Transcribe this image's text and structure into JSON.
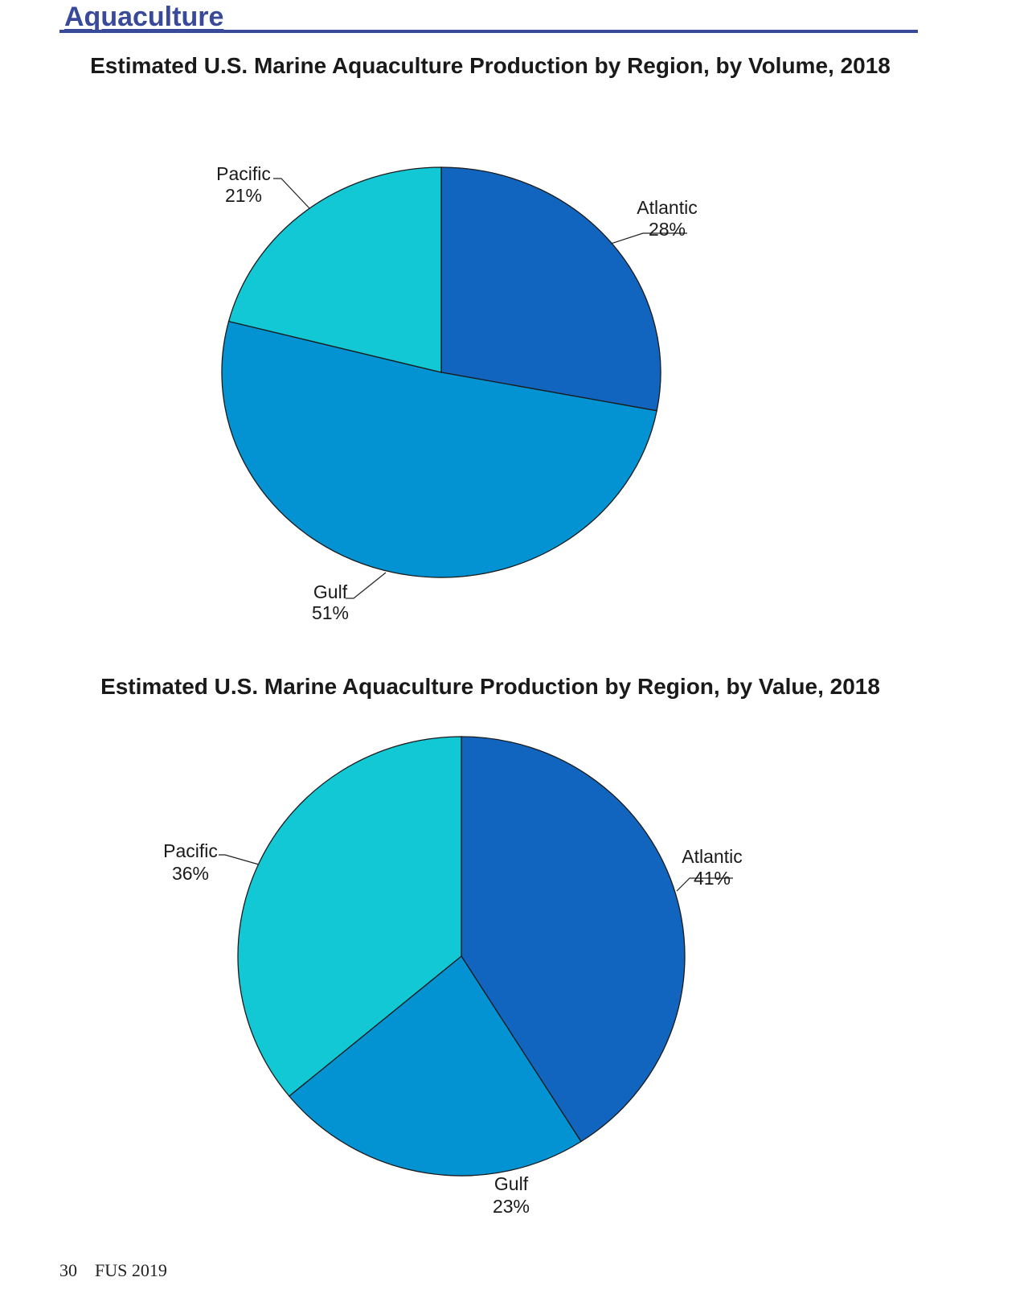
{
  "section": {
    "title": "Aquaculture"
  },
  "footer": {
    "page_number": "30",
    "publication": "FUS 2019"
  },
  "colors": {
    "Atlantic": "#1165BE",
    "Gulf": "#0393D3",
    "Pacific": "#13C8D5",
    "outline": "#1a1a1a"
  },
  "chart_data": [
    {
      "type": "pie",
      "title": "Estimated U.S. Marine Aquaculture Production by Region, by Volume, 2018",
      "slices": [
        {
          "name": "Atlantic",
          "value": 28,
          "label": "28%"
        },
        {
          "name": "Gulf",
          "value": 51,
          "label": "51%"
        },
        {
          "name": "Pacific",
          "value": 21,
          "label": "21%"
        }
      ]
    },
    {
      "type": "pie",
      "title": "Estimated U.S. Marine Aquaculture Production by Region, by Value, 2018",
      "slices": [
        {
          "name": "Atlantic",
          "value": 41,
          "label": "41%"
        },
        {
          "name": "Gulf",
          "value": 23,
          "label": "23%"
        },
        {
          "name": "Pacific",
          "value": 36,
          "label": "36%"
        }
      ]
    }
  ]
}
